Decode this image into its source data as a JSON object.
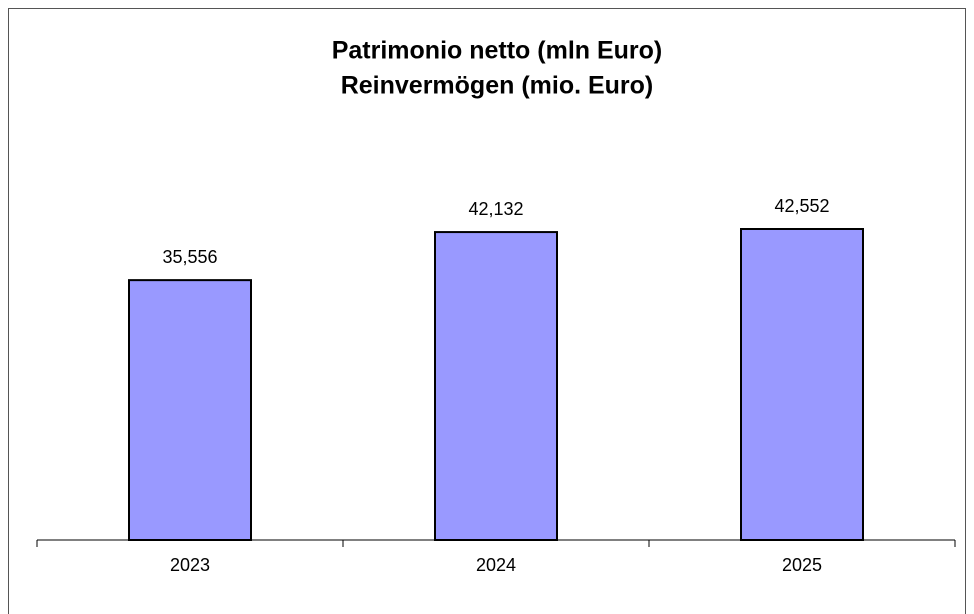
{
  "chart_data": {
    "type": "bar",
    "title": [
      "Patrimonio netto (mln Euro)",
      "Reinvermögen  (mio. Euro)"
    ],
    "categories": [
      "2023",
      "2024",
      "2025"
    ],
    "values": [
      35556,
      42132,
      42552
    ],
    "value_labels": [
      "35,556",
      "42,132",
      "42,552"
    ],
    "color": "#9999ff"
  }
}
